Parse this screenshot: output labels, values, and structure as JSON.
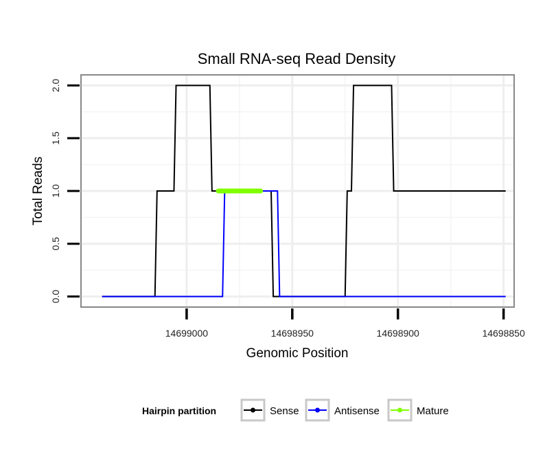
{
  "chart_data": {
    "type": "line",
    "title": "Small RNA-seq Read Density",
    "xlabel": "Genomic Position",
    "ylabel": "Total Reads",
    "xlim": [
      14699050,
      14698845
    ],
    "ylim": [
      -0.1,
      2.1
    ],
    "x_reversed": true,
    "grid": true,
    "x_ticks": [
      14699000,
      14698950,
      14698900,
      14698850
    ],
    "x_tick_labels": [
      "14699000",
      "14698950",
      "14698900",
      "14698850"
    ],
    "y_ticks": [
      0.0,
      0.5,
      1.0,
      1.5,
      2.0
    ],
    "y_tick_labels": [
      "0.0",
      "0.5",
      "1.0",
      "1.5",
      "2.0"
    ],
    "legend": {
      "title": "Hairpin partition",
      "position": "bottom",
      "entries": [
        {
          "name": "Sense",
          "color": "#000000"
        },
        {
          "name": "Antisense",
          "color": "#0000ff"
        },
        {
          "name": "Mature",
          "color": "#7fff00"
        }
      ]
    },
    "series": [
      {
        "name": "Sense",
        "color": "#000000",
        "x": [
          14699040,
          14699015,
          14699014,
          14699006,
          14699005,
          14698989,
          14698988,
          14698977,
          14698976,
          14698960,
          14698959,
          14698925,
          14698924,
          14698922,
          14698921,
          14698903,
          14698902,
          14698849
        ],
        "y": [
          0,
          0,
          1,
          1,
          2,
          2,
          1,
          1,
          1,
          1,
          0,
          0,
          1,
          1,
          2,
          2,
          1,
          1
        ]
      },
      {
        "name": "Antisense",
        "color": "#0000ff",
        "x": [
          14699040,
          14698983,
          14698982,
          14698957,
          14698956,
          14698849
        ],
        "y": [
          0,
          0,
          1,
          1,
          0,
          0
        ]
      },
      {
        "name": "Mature",
        "color": "#7fff00",
        "x": [
          14698985,
          14698965
        ],
        "y": [
          1,
          1
        ]
      }
    ]
  }
}
